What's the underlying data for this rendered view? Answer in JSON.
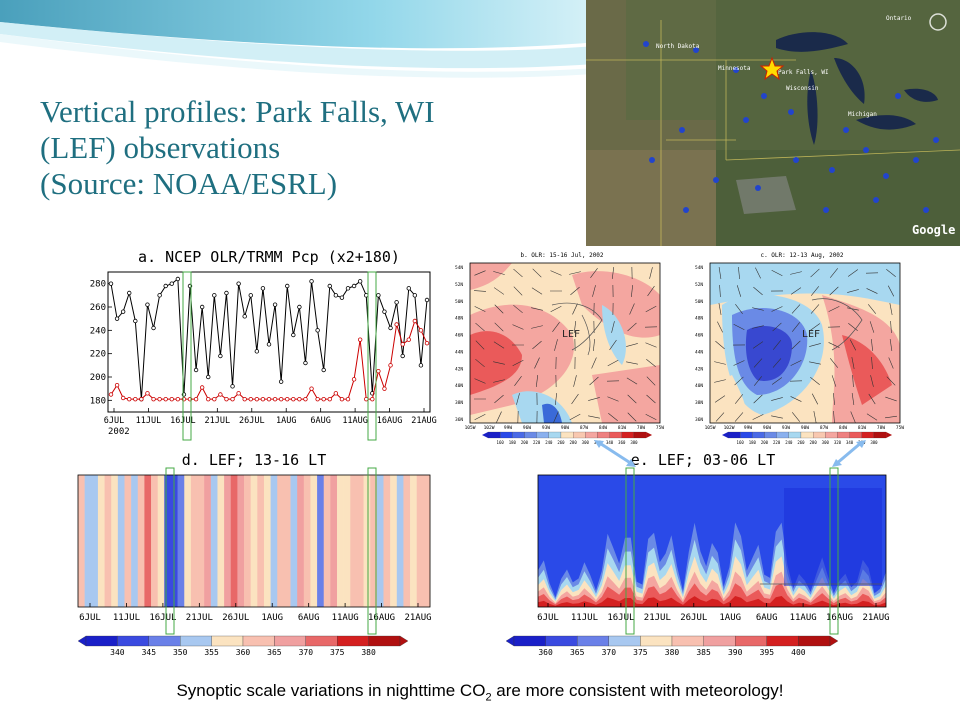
{
  "slide": {
    "title_lines": [
      "Vertical profiles: Park Falls, WI",
      "(LEF) observations",
      "(Source: NOAA/ESRL)"
    ],
    "caption_before": "Synoptic scale variations in nighttime CO",
    "caption_sub": "2",
    "caption_after": " are more consistent with meteorology!"
  },
  "map": {
    "watermark": "Google",
    "site_label": "Park Falls, WI",
    "states": [
      "North Dakota",
      "Minnesota",
      "Wisconsin",
      "Michigan",
      "Ontario"
    ]
  },
  "colors": {
    "accent": "#1f6f80",
    "olr_line": "#000000",
    "pcp_line": "#cc0000",
    "highlight_box": "#44aa44"
  },
  "chart_data": [
    {
      "type": "line",
      "title": "a. NCEP OLR/TRMM Pcp (x2+180)",
      "x_ticks": [
        "6JUL",
        "11JUL",
        "16JUL",
        "21JUL",
        "26JUL",
        "1AUG",
        "6AUG",
        "11AUG",
        "16AUG",
        "21AUG"
      ],
      "x_sublabel": "2002",
      "yticks": [
        180,
        200,
        220,
        240,
        260,
        280
      ],
      "ylim": [
        170,
        290
      ],
      "series": [
        {
          "values": [
            280,
            250,
            256,
            272,
            248,
            181,
            262,
            242,
            270,
            278,
            280,
            284,
            185,
            278,
            206,
            260,
            200,
            270,
            218,
            272,
            192,
            280,
            252,
            270,
            222,
            276,
            228,
            262,
            196,
            278,
            236,
            260,
            212,
            282,
            240,
            206,
            278,
            270,
            268,
            276,
            278,
            282,
            270,
            186,
            270,
            256,
            242,
            264,
            218,
            276,
            270,
            210,
            266
          ]
        },
        {
          "values": [
            185,
            193,
            182,
            181,
            181,
            181,
            186,
            181,
            181,
            181,
            181,
            181,
            181,
            181,
            181,
            191,
            181,
            181,
            185,
            181,
            181,
            186,
            181,
            181,
            181,
            181,
            181,
            181,
            181,
            181,
            181,
            181,
            181,
            190,
            181,
            181,
            181,
            186,
            181,
            181,
            198,
            232,
            181,
            181,
            205,
            190,
            210,
            245,
            228,
            232,
            248,
            240,
            229
          ]
        }
      ]
    },
    {
      "type": "heatmap",
      "title": "b. OLR: 15-16 Jul, 2002",
      "annotation": "LEF",
      "colorbar_ticks": [
        "160",
        "180",
        "200",
        "220",
        "240",
        "260",
        "280",
        "300",
        "320",
        "340",
        "360",
        "380"
      ],
      "lon_ticks": [
        "105W",
        "102W",
        "99W",
        "96W",
        "93W",
        "90W",
        "87W",
        "84W",
        "81W",
        "78W",
        "75W"
      ],
      "lat_ticks": [
        "54N",
        "52N",
        "50N",
        "48N",
        "46N",
        "44N",
        "42N",
        "40N",
        "38N",
        "36N"
      ]
    },
    {
      "type": "heatmap",
      "title": "c. OLR: 12-13 Aug, 2002",
      "annotation": "LEF",
      "colorbar_ticks": [
        "160",
        "180",
        "200",
        "220",
        "240",
        "260",
        "280",
        "300",
        "320",
        "340",
        "360",
        "380"
      ],
      "lon_ticks": [
        "105W",
        "102W",
        "99W",
        "96W",
        "93W",
        "90W",
        "87W",
        "84W",
        "81W",
        "78W",
        "75W"
      ],
      "lat_ticks": [
        "54N",
        "52N",
        "50N",
        "48N",
        "46N",
        "44N",
        "42N",
        "40N",
        "38N",
        "36N"
      ]
    },
    {
      "type": "heatmap",
      "title": "d. LEF; 13-16 LT",
      "x_ticks": [
        "6JUL",
        "11JUL",
        "16JUL",
        "21JUL",
        "26JUL",
        "1AUG",
        "6AUG",
        "11AUG",
        "16AUG",
        "21AUG"
      ],
      "colorbar_ticks": [
        "340",
        "345",
        "350",
        "355",
        "360",
        "365",
        "370",
        "375",
        "380"
      ],
      "column_values": [
        360,
        352,
        350,
        358,
        362,
        356,
        352,
        360,
        351,
        362,
        370,
        362,
        356,
        340,
        342,
        348,
        355,
        360,
        362,
        365,
        354,
        358,
        368,
        372,
        366,
        361,
        356,
        364,
        358,
        352,
        360,
        363,
        353,
        368,
        360,
        356,
        348,
        362,
        365,
        355,
        358,
        360,
        362,
        356,
        360,
        354,
        360,
        357,
        353,
        362,
        356,
        360,
        362
      ]
    },
    {
      "type": "heatmap",
      "title": "e. LEF; 03-06 LT",
      "x_ticks": [
        "6JUL",
        "11JUL",
        "16JUL",
        "21JUL",
        "26JUL",
        "1AUG",
        "6AUG",
        "11AUG",
        "16AUG",
        "21AUG"
      ],
      "colorbar_ticks": [
        "360",
        "365",
        "370",
        "375",
        "380",
        "385",
        "390",
        "395",
        "400"
      ]
    }
  ]
}
